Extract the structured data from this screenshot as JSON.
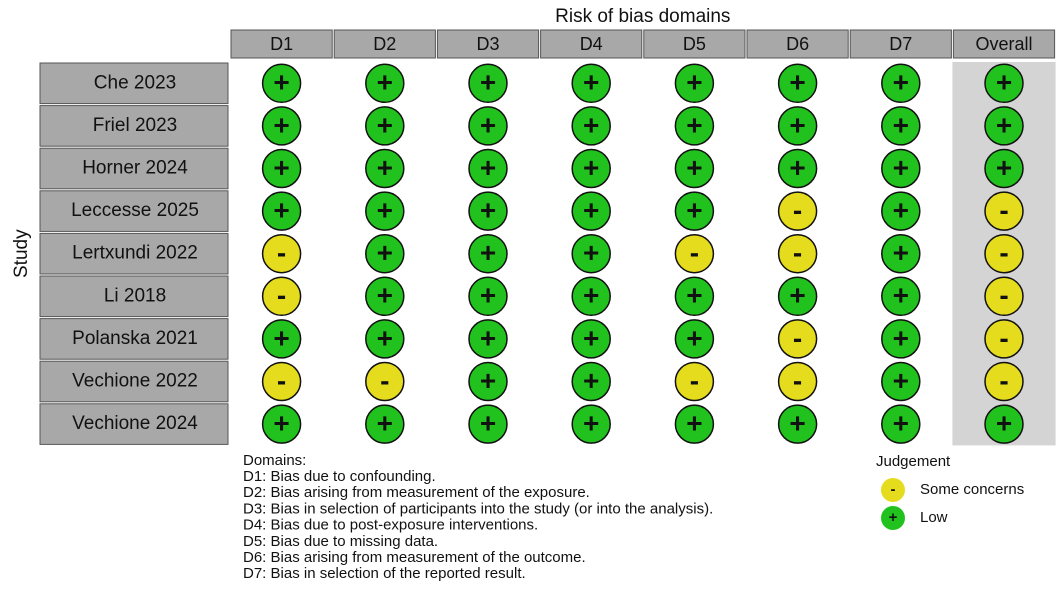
{
  "title": "Risk of bias domains",
  "y_label": "Study",
  "columns": [
    "D1",
    "D2",
    "D3",
    "D4",
    "D5",
    "D6",
    "D7",
    "Overall"
  ],
  "rows": [
    {
      "study": "Che 2023",
      "judgements": [
        "+",
        "+",
        "+",
        "+",
        "+",
        "+",
        "+",
        "+"
      ]
    },
    {
      "study": "Friel 2023",
      "judgements": [
        "+",
        "+",
        "+",
        "+",
        "+",
        "+",
        "+",
        "+"
      ]
    },
    {
      "study": "Horner 2024",
      "judgements": [
        "+",
        "+",
        "+",
        "+",
        "+",
        "+",
        "+",
        "+"
      ]
    },
    {
      "study": "Leccesse 2025",
      "judgements": [
        "+",
        "+",
        "+",
        "+",
        "+",
        "-",
        "+",
        "-"
      ]
    },
    {
      "study": "Lertxundi 2022",
      "judgements": [
        "-",
        "+",
        "+",
        "+",
        "-",
        "-",
        "+",
        "-"
      ]
    },
    {
      "study": "Li 2018",
      "judgements": [
        "-",
        "+",
        "+",
        "+",
        "+",
        "+",
        "+",
        "-"
      ]
    },
    {
      "study": "Polanska 2021",
      "judgements": [
        "+",
        "+",
        "+",
        "+",
        "+",
        "-",
        "+",
        "-"
      ]
    },
    {
      "study": "Vechione 2022",
      "judgements": [
        "-",
        "-",
        "+",
        "+",
        "-",
        "-",
        "+",
        "-"
      ]
    },
    {
      "study": "Vechione 2024",
      "judgements": [
        "+",
        "+",
        "+",
        "+",
        "+",
        "+",
        "+",
        "+"
      ]
    }
  ],
  "domains_title": "Domains:",
  "domains": [
    "D1: Bias due to confounding.",
    "D2: Bias arising from measurement of the exposure.",
    "D3: Bias in selection of participants into the study (or into the analysis).",
    "D4: Bias due to post-exposure interventions.",
    "D5: Bias due to missing data.",
    "D6: Bias arising from measurement of the outcome.",
    "D7: Bias in selection of the reported result."
  ],
  "legend_title": "Judgement",
  "levels": [
    {
      "symbol": "-",
      "label": "Some concerns",
      "color": "#e6dc1e"
    },
    {
      "symbol": "+",
      "label": "Low",
      "color": "#22c21e"
    }
  ]
}
